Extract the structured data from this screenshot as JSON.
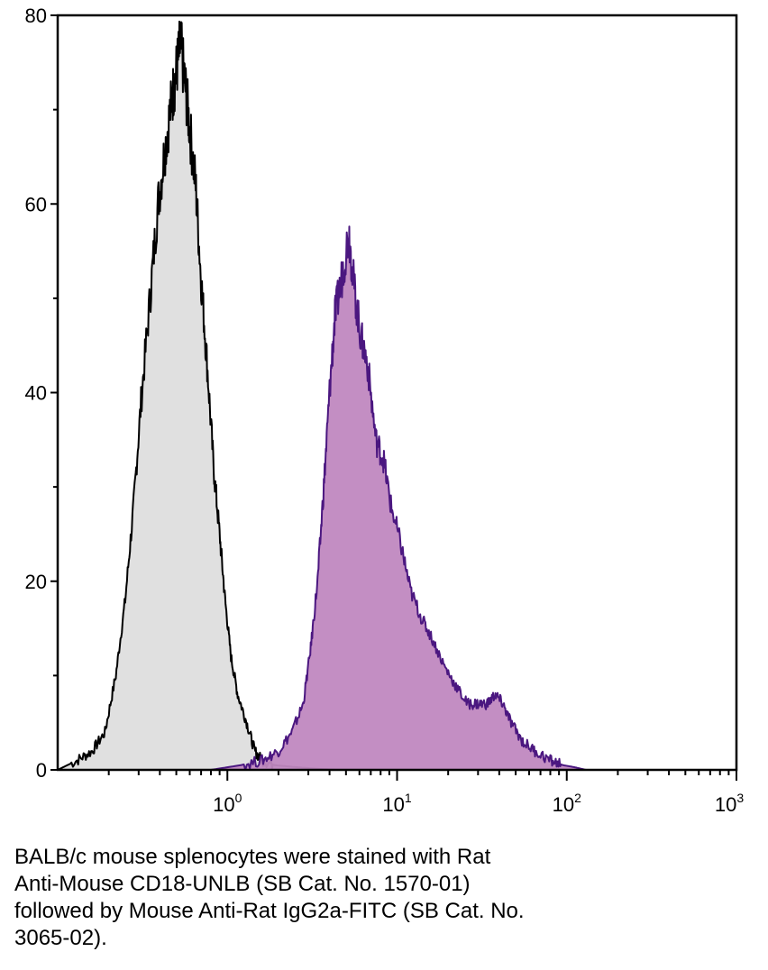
{
  "chart_data": {
    "type": "area",
    "title": "",
    "xlabel": "",
    "ylabel": "",
    "x_scale": "log",
    "xlim": [
      0.1,
      1000
    ],
    "ylim": [
      0,
      80
    ],
    "grid": false,
    "legend": "none",
    "y_ticks": [
      0,
      20,
      40,
      60,
      80
    ],
    "x_ticks": [
      {
        "value": 1,
        "base": "10",
        "exp": "0"
      },
      {
        "value": 10,
        "base": "10",
        "exp": "1"
      },
      {
        "value": 100,
        "base": "10",
        "exp": "2"
      },
      {
        "value": 1000,
        "base": "10",
        "exp": "3"
      }
    ],
    "series": [
      {
        "fill": "#e0e0e0",
        "stroke": "#000000",
        "points": [
          [
            0.1,
            0
          ],
          [
            0.13,
            1
          ],
          [
            0.16,
            2
          ],
          [
            0.19,
            4
          ],
          [
            0.22,
            10
          ],
          [
            0.25,
            18
          ],
          [
            0.28,
            28
          ],
          [
            0.31,
            39
          ],
          [
            0.35,
            50
          ],
          [
            0.39,
            60
          ],
          [
            0.43,
            66
          ],
          [
            0.47,
            71
          ],
          [
            0.5,
            74
          ],
          [
            0.53,
            77
          ],
          [
            0.56,
            73
          ],
          [
            0.6,
            68
          ],
          [
            0.65,
            62
          ],
          [
            0.7,
            52
          ],
          [
            0.76,
            43
          ],
          [
            0.83,
            32
          ],
          [
            0.9,
            25
          ],
          [
            0.97,
            18
          ],
          [
            1.05,
            12
          ],
          [
            1.15,
            8
          ],
          [
            1.3,
            5
          ],
          [
            1.45,
            2
          ],
          [
            1.6,
            1
          ],
          [
            1.9,
            0.5
          ],
          [
            2.5,
            0.3
          ],
          [
            3.5,
            0.1
          ],
          [
            4.5,
            0
          ]
        ]
      },
      {
        "fill": "#c088c0",
        "stroke": "#4b1780",
        "points": [
          [
            0.8,
            0
          ],
          [
            1.2,
            0.5
          ],
          [
            1.6,
            1
          ],
          [
            2.0,
            2
          ],
          [
            2.4,
            4
          ],
          [
            2.8,
            7
          ],
          [
            3.1,
            13
          ],
          [
            3.4,
            20
          ],
          [
            3.7,
            30
          ],
          [
            4.0,
            40
          ],
          [
            4.3,
            48
          ],
          [
            4.7,
            52
          ],
          [
            5.2,
            57
          ],
          [
            5.6,
            51
          ],
          [
            6.1,
            46
          ],
          [
            6.7,
            43
          ],
          [
            7.5,
            35
          ],
          [
            8.3,
            33
          ],
          [
            9.2,
            28
          ],
          [
            10.5,
            24
          ],
          [
            12,
            19
          ],
          [
            14,
            16
          ],
          [
            16,
            14
          ],
          [
            19,
            11
          ],
          [
            22,
            9
          ],
          [
            26,
            7
          ],
          [
            30,
            7
          ],
          [
            34,
            7
          ],
          [
            38,
            8
          ],
          [
            42,
            7
          ],
          [
            47,
            5
          ],
          [
            55,
            3
          ],
          [
            65,
            2
          ],
          [
            80,
            1
          ],
          [
            95,
            0.5
          ],
          [
            110,
            0.3
          ],
          [
            130,
            0
          ]
        ]
      }
    ]
  },
  "caption": {
    "lines": [
      "BALB/c mouse splenocytes were stained with Rat",
      "Anti-Mouse CD18-UNLB (SB Cat. No. 1570-01)",
      "followed by Mouse Anti-Rat IgG2a-FITC (SB Cat. No.",
      "3065-02)."
    ]
  }
}
